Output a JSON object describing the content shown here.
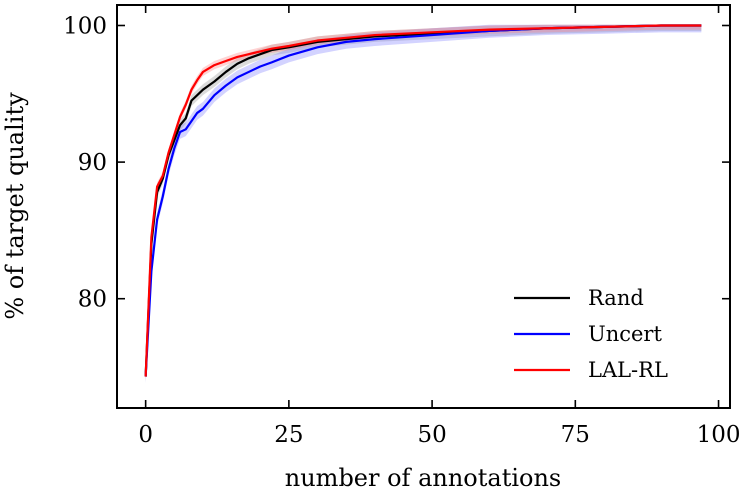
{
  "chart_data": {
    "type": "line",
    "title": "",
    "xlabel": "number of annotations",
    "ylabel": "% of target quality",
    "xlim": [
      -5,
      102
    ],
    "ylim": [
      72,
      101.5
    ],
    "xticks": [
      0,
      25,
      50,
      75,
      100
    ],
    "yticks": [
      80,
      90,
      100
    ],
    "grid": false,
    "legend_position": "bottom-right",
    "series": [
      {
        "name": "Rand",
        "color": "#000000",
        "band_color": "#999999",
        "x": [
          0,
          1,
          2,
          3,
          4,
          5,
          6,
          7,
          8,
          9,
          10,
          12,
          14,
          16,
          18,
          20,
          22,
          25,
          30,
          35,
          40,
          50,
          60,
          70,
          80,
          90,
          97
        ],
        "y": [
          74.3,
          84.0,
          87.8,
          88.8,
          90.5,
          91.6,
          92.7,
          93.2,
          94.5,
          94.9,
          95.3,
          95.9,
          96.6,
          97.2,
          97.6,
          97.9,
          98.2,
          98.4,
          98.8,
          99.0,
          99.2,
          99.4,
          99.6,
          99.8,
          99.9,
          100.0,
          100.0
        ],
        "band": 0.4
      },
      {
        "name": "Uncert",
        "color": "#0000ff",
        "band_color": "#8080ff",
        "x": [
          0,
          1,
          2,
          3,
          4,
          5,
          6,
          7,
          8,
          9,
          10,
          12,
          14,
          16,
          18,
          20,
          22,
          25,
          30,
          35,
          40,
          50,
          60,
          70,
          80,
          90,
          97
        ],
        "y": [
          74.3,
          82.0,
          85.8,
          87.5,
          89.5,
          91.0,
          92.2,
          92.4,
          93.0,
          93.6,
          93.9,
          94.9,
          95.6,
          96.2,
          96.6,
          97.0,
          97.3,
          97.8,
          98.4,
          98.8,
          99.0,
          99.3,
          99.6,
          99.8,
          99.9,
          100.0,
          100.0
        ],
        "band": 0.5
      },
      {
        "name": "LAL-RL",
        "color": "#ff0000",
        "band_color": "#ff8080",
        "x": [
          0,
          1,
          2,
          3,
          4,
          5,
          6,
          7,
          8,
          9,
          10,
          12,
          14,
          16,
          18,
          20,
          22,
          25,
          30,
          35,
          40,
          50,
          60,
          70,
          80,
          90,
          97
        ],
        "y": [
          74.3,
          84.5,
          88.2,
          89.0,
          90.7,
          92.0,
          93.3,
          94.2,
          95.3,
          96.0,
          96.6,
          97.1,
          97.4,
          97.7,
          97.9,
          98.1,
          98.3,
          98.5,
          98.9,
          99.1,
          99.3,
          99.5,
          99.7,
          99.8,
          99.9,
          100.0,
          100.0
        ],
        "band": 0.3
      }
    ]
  }
}
